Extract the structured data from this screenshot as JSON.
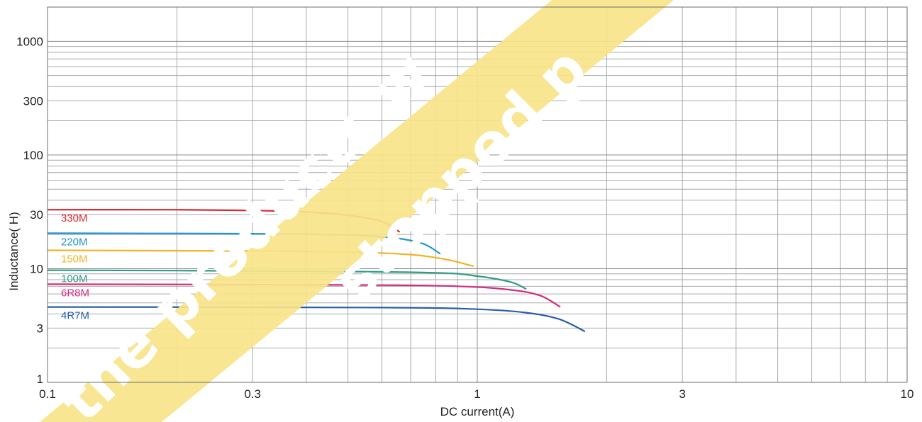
{
  "chart_data": {
    "type": "line",
    "xlabel": "DC current(A)",
    "ylabel": "Inductance(   H)",
    "x_scale": "log",
    "y_scale": "log",
    "xlim": [
      0.1,
      10
    ],
    "ylim": [
      1,
      2000
    ],
    "x_ticks": [
      {
        "value": 0.1,
        "label": "0.1"
      },
      {
        "value": 0.3,
        "label": "0.3"
      },
      {
        "value": 1,
        "label": "1"
      },
      {
        "value": 3,
        "label": "3"
      },
      {
        "value": 10,
        "label": "10"
      }
    ],
    "y_ticks": [
      {
        "value": 1,
        "label": "1"
      },
      {
        "value": 3,
        "label": "3"
      },
      {
        "value": 10,
        "label": "10"
      },
      {
        "value": 30,
        "label": "30"
      },
      {
        "value": 100,
        "label": "100"
      },
      {
        "value": 300,
        "label": "300"
      },
      {
        "value": 1000,
        "label": "1000"
      }
    ],
    "grid": true,
    "series": [
      {
        "name": "330M",
        "color": "#e0262b",
        "points": [
          [
            0.1,
            33
          ],
          [
            0.2,
            33
          ],
          [
            0.3,
            32.5
          ],
          [
            0.4,
            31.5
          ],
          [
            0.5,
            29.5
          ],
          [
            0.6,
            26
          ],
          [
            0.66,
            21
          ]
        ]
      },
      {
        "name": "220M",
        "color": "#2196d3",
        "points": [
          [
            0.1,
            20.5
          ],
          [
            0.3,
            20.3
          ],
          [
            0.5,
            19.8
          ],
          [
            0.65,
            18.5
          ],
          [
            0.75,
            16.5
          ],
          [
            0.82,
            13.5
          ]
        ]
      },
      {
        "name": "150M",
        "color": "#f0b323",
        "points": [
          [
            0.1,
            14.5
          ],
          [
            0.3,
            14.3
          ],
          [
            0.5,
            14
          ],
          [
            0.7,
            13.3
          ],
          [
            0.85,
            12
          ],
          [
            0.98,
            10.5
          ]
        ]
      },
      {
        "name": "100M",
        "color": "#2e9c86",
        "points": [
          [
            0.1,
            9.7
          ],
          [
            0.4,
            9.5
          ],
          [
            0.8,
            9.2
          ],
          [
            1.0,
            8.6
          ],
          [
            1.2,
            7.6
          ],
          [
            1.3,
            6.6
          ]
        ]
      },
      {
        "name": "6R8M",
        "color": "#d52c80",
        "points": [
          [
            0.1,
            7.3
          ],
          [
            0.5,
            7.2
          ],
          [
            0.9,
            7
          ],
          [
            1.2,
            6.5
          ],
          [
            1.4,
            5.8
          ],
          [
            1.56,
            4.6
          ]
        ]
      },
      {
        "name": "4R7M",
        "color": "#2b5ea8",
        "points": [
          [
            0.1,
            4.6
          ],
          [
            0.6,
            4.55
          ],
          [
            1.0,
            4.4
          ],
          [
            1.3,
            4.1
          ],
          [
            1.55,
            3.6
          ],
          [
            1.78,
            2.8
          ]
        ]
      }
    ]
  },
  "watermark": {
    "line1": "the products w",
    "line2": "stopped p",
    "color": "#f7e48a"
  }
}
